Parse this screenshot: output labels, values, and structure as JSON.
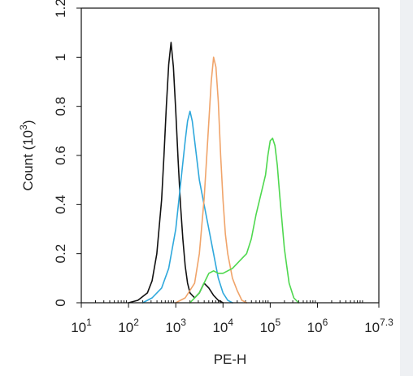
{
  "chart_data": {
    "type": "line",
    "title": "",
    "xlabel": "PE-H",
    "ylabel": {
      "base": "Count (10",
      "exponent": "3",
      "suffix": ")"
    },
    "x_scale": "log",
    "xlim": [
      10,
      19952623
    ],
    "ylim": [
      0,
      1.2
    ],
    "x_ticks": [
      {
        "base": "10",
        "exp": "1"
      },
      {
        "base": "10",
        "exp": "2"
      },
      {
        "base": "10",
        "exp": "3"
      },
      {
        "base": "10",
        "exp": "4"
      },
      {
        "base": "10",
        "exp": "5"
      },
      {
        "base": "10",
        "exp": "6"
      },
      {
        "base": "10",
        "exp": "7.3"
      }
    ],
    "y_ticks": [
      "0",
      "0.2",
      "0.4",
      "0.6",
      "0.8",
      "1",
      "1.2"
    ],
    "grid": false,
    "legend": "none",
    "series": [
      {
        "color": "#111111",
        "x": [
          100,
          158,
          251,
          316,
          398,
          501,
          562,
          631,
          708,
          794,
          891,
          1000,
          1122,
          1259,
          1413,
          1585,
          1778,
          2000,
          2512,
          3162,
          3981,
          5012,
          6310,
          7943,
          10000
        ],
        "y": [
          0.0,
          0.01,
          0.04,
          0.09,
          0.2,
          0.42,
          0.6,
          0.8,
          0.97,
          1.06,
          0.96,
          0.78,
          0.58,
          0.4,
          0.26,
          0.15,
          0.08,
          0.04,
          0.02,
          0.04,
          0.08,
          0.06,
          0.03,
          0.01,
          0.0
        ]
      },
      {
        "color": "#2fa8dc",
        "x": [
          200,
          316,
          501,
          708,
          1000,
          1259,
          1585,
          1778,
          2000,
          2239,
          2512,
          2818,
          3162,
          3981,
          5012,
          6310,
          7943,
          10000,
          12589,
          15849
        ],
        "y": [
          0.0,
          0.02,
          0.06,
          0.14,
          0.3,
          0.48,
          0.66,
          0.74,
          0.78,
          0.74,
          0.66,
          0.58,
          0.5,
          0.4,
          0.3,
          0.2,
          0.1,
          0.04,
          0.01,
          0.0
        ]
      },
      {
        "color": "#f0a46a",
        "x": [
          1000,
          1585,
          2512,
          3162,
          3981,
          4467,
          5012,
          5623,
          6310,
          7079,
          7943,
          8913,
          10000,
          11220,
          12589,
          15849,
          19953,
          25119,
          31623
        ],
        "y": [
          0.0,
          0.02,
          0.08,
          0.2,
          0.42,
          0.58,
          0.74,
          0.9,
          1.0,
          0.96,
          0.82,
          0.6,
          0.42,
          0.28,
          0.2,
          0.1,
          0.05,
          0.01,
          0.0
        ]
      },
      {
        "color": "#4fd84f",
        "x": [
          2000,
          3162,
          3981,
          5012,
          6310,
          7943,
          10000,
          15849,
          25119,
          31623,
          39811,
          50119,
          63096,
          79433,
          89125,
          100000,
          112202,
          125893,
          141254,
          158489,
          199526,
          251189,
          316228,
          398107
        ],
        "y": [
          0.0,
          0.04,
          0.08,
          0.12,
          0.13,
          0.12,
          0.12,
          0.14,
          0.18,
          0.2,
          0.26,
          0.36,
          0.44,
          0.52,
          0.6,
          0.66,
          0.67,
          0.64,
          0.56,
          0.44,
          0.22,
          0.08,
          0.02,
          0.0
        ]
      }
    ]
  }
}
